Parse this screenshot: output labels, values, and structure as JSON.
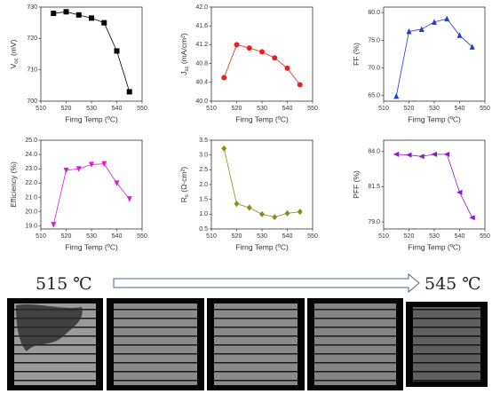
{
  "chart_data": [
    {
      "type": "line",
      "y_label": [
        {
          "text": "V"
        },
        {
          "text": "oc",
          "sub": true
        },
        {
          "text": " (mV)"
        }
      ],
      "x_label": "Firng Temp (ºC)",
      "x": [
        515,
        520,
        525,
        530,
        535,
        540,
        545
      ],
      "xlim": [
        510,
        550
      ],
      "xticks": [
        510,
        520,
        530,
        540,
        550
      ],
      "ylim": [
        700,
        730
      ],
      "yticks": [
        700,
        710,
        720,
        730
      ],
      "series": [
        {
          "color": "#000000",
          "marker": "square",
          "values": [
            728,
            728.5,
            727.5,
            726.5,
            725,
            716,
            703
          ]
        }
      ]
    },
    {
      "type": "line",
      "y_label": [
        {
          "text": "J"
        },
        {
          "text": "sc",
          "sub": true
        },
        {
          "text": " (mA/cm²)"
        }
      ],
      "x_label": "Firng Temp (ºC)",
      "x": [
        515,
        520,
        525,
        530,
        535,
        540,
        545
      ],
      "xlim": [
        510,
        550
      ],
      "xticks": [
        510,
        520,
        530,
        540,
        550
      ],
      "ylim": [
        40.0,
        42.0
      ],
      "yticks": [
        {
          "value": 40,
          "label": "40.0"
        },
        40.4,
        40.8,
        41.2,
        41.6,
        {
          "value": 42,
          "label": "42.0"
        }
      ],
      "series": [
        {
          "color": "#e8211f",
          "marker": "circle",
          "values": [
            40.5,
            41.2,
            41.13,
            41.05,
            40.92,
            40.7,
            40.35
          ]
        }
      ]
    },
    {
      "type": "line",
      "y_label": [
        {
          "text": "FF (%)"
        }
      ],
      "x_label": "Firng Temp (ºC)",
      "x": [
        515,
        520,
        525,
        530,
        535,
        540,
        545
      ],
      "xlim": [
        510,
        550
      ],
      "xticks": [
        510,
        520,
        530,
        540,
        550
      ],
      "ylim": [
        64,
        81
      ],
      "yticks": [
        {
          "value": 65,
          "label": "65.0"
        },
        {
          "value": 70,
          "label": "70.0"
        },
        {
          "value": 75,
          "label": "75.0"
        },
        {
          "value": 80,
          "label": "80.0"
        }
      ],
      "series": [
        {
          "color": "#1f3fc4",
          "marker": "triangle-up",
          "values": [
            64.9,
            76.6,
            77.0,
            78.3,
            78.9,
            75.9,
            73.8
          ]
        }
      ]
    },
    {
      "type": "line",
      "y_label": [
        {
          "text": "Efficiency  (%)"
        }
      ],
      "x_label": "Firng Temp (ºC)",
      "x": [
        515,
        520,
        525,
        530,
        535,
        540,
        545
      ],
      "xlim": [
        510,
        550
      ],
      "xticks": [
        510,
        520,
        530,
        540,
        550
      ],
      "ylim": [
        18.8,
        25.0
      ],
      "yticks": [
        {
          "value": 19,
          "label": "19.0"
        },
        {
          "value": 20,
          "label": "20.0"
        },
        {
          "value": 21,
          "label": "21.0"
        },
        {
          "value": 22,
          "label": "22.0"
        },
        {
          "value": 23,
          "label": "23.0"
        },
        {
          "value": 24,
          "label": "24.0"
        },
        {
          "value": 25,
          "label": "25.0"
        }
      ],
      "series": [
        {
          "color": "#e617d6",
          "marker": "triangle-down",
          "values": [
            19.1,
            22.9,
            23.0,
            23.3,
            23.35,
            22.0,
            20.9
          ]
        }
      ]
    },
    {
      "type": "line",
      "y_label": [
        {
          "text": "R"
        },
        {
          "text": "s",
          "sub": true
        },
        {
          "text": " (Ω-cm²)"
        }
      ],
      "x_label": "Firng Temp (ºC)",
      "x": [
        515,
        520,
        525,
        530,
        535,
        540,
        545
      ],
      "xlim": [
        510,
        550
      ],
      "xticks": [
        510,
        520,
        530,
        540,
        550
      ],
      "ylim": [
        0.5,
        3.5
      ],
      "yticks": [
        0.5,
        {
          "value": 1,
          "label": "1.0"
        },
        1.5,
        {
          "value": 2,
          "label": "2.0"
        },
        2.5,
        {
          "value": 3,
          "label": "3.0"
        },
        3.5
      ],
      "series": [
        {
          "color": "#8a8a1a",
          "marker": "diamond",
          "values": [
            3.22,
            1.35,
            1.22,
            1.0,
            0.9,
            1.03,
            1.08
          ]
        }
      ]
    },
    {
      "type": "line",
      "y_label": [
        {
          "text": "PFF (%)"
        }
      ],
      "x_label": "Firng Temp (ºC)",
      "x": [
        515,
        520,
        525,
        530,
        535,
        540,
        545
      ],
      "xlim": [
        510,
        550
      ],
      "xticks": [
        510,
        520,
        530,
        540,
        550
      ],
      "ylim": [
        78.5,
        84.8
      ],
      "yticks": [
        {
          "value": 79,
          "label": "79.0"
        },
        81.5,
        {
          "value": 84,
          "label": "84.0"
        }
      ],
      "series": [
        {
          "color": "#8a1ad0",
          "marker": "triangle-left",
          "values": [
            83.8,
            83.75,
            83.65,
            83.8,
            83.8,
            81.1,
            79.3
          ]
        }
      ]
    }
  ],
  "strip": {
    "start": "515 ℃",
    "end": "545 ℃"
  }
}
